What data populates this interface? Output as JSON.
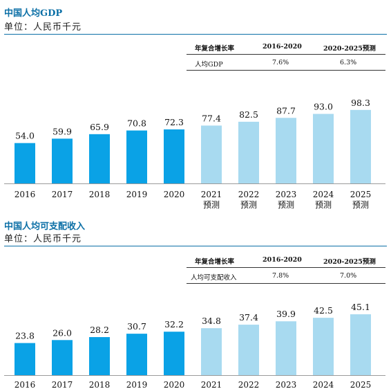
{
  "colors": {
    "actual": "#0aa2e6",
    "forecast": "#a8daf0",
    "title": "#0b6fa6"
  },
  "chart_data": [
    {
      "type": "bar",
      "title": "中国人均GDP",
      "subtitle": "单位：人民币千元",
      "categories": [
        "2016",
        "2017",
        "2018",
        "2019",
        "2020",
        "2021\n预测",
        "2022\n预测",
        "2023\n预测",
        "2024\n预测",
        "2025\n预测"
      ],
      "values": [
        54.0,
        59.9,
        65.9,
        70.8,
        72.3,
        77.4,
        82.5,
        87.7,
        93.0,
        98.3
      ],
      "forecast_from_index": 5,
      "table": {
        "headers": [
          "年复合增长率",
          "2016-2020",
          "2020-2025预测"
        ],
        "rows": [
          [
            "人均GDP",
            "7.6%",
            "6.3%"
          ]
        ]
      }
    },
    {
      "type": "bar",
      "title": "中国人均可支配收入",
      "subtitle": "单位：人民币千元",
      "categories": [
        "2016",
        "2017",
        "2018",
        "2019",
        "2020",
        "2021",
        "2022",
        "2023",
        "2024",
        "2025"
      ],
      "values": [
        23.8,
        26.0,
        28.2,
        30.7,
        32.2,
        34.8,
        37.4,
        39.9,
        42.5,
        45.1
      ],
      "forecast_from_index": 5,
      "table": {
        "headers": [
          "年复合增长率",
          "2016-2020",
          "2020-2025预测"
        ],
        "rows": [
          [
            "人均可支配收入",
            "7.8%",
            "7.0%"
          ]
        ]
      }
    }
  ]
}
